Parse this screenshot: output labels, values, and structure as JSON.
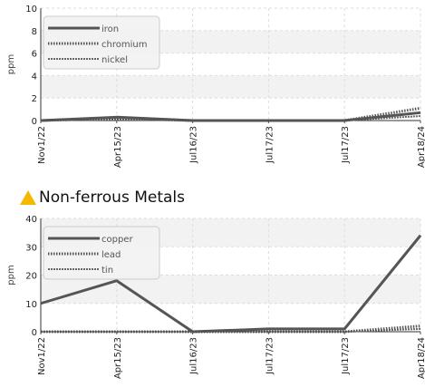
{
  "chart_data": [
    {
      "type": "line",
      "title": "",
      "ylabel": "ppm",
      "ylim": [
        0,
        10
      ],
      "yticks": [
        0,
        2,
        4,
        6,
        8,
        10
      ],
      "categories": [
        "Nov1/22",
        "Apr15/23",
        "Jul16/23",
        "Jul17/23",
        "Jul17/23",
        "Apr18/24"
      ],
      "grid": true,
      "legend_position": "top-left",
      "series": [
        {
          "name": "iron",
          "values": [
            0,
            0.3,
            0,
            0,
            0,
            0.7
          ],
          "color": "#555555",
          "style": "solid"
        },
        {
          "name": "chromium",
          "values": [
            0,
            0.2,
            0,
            0,
            0,
            1.1
          ],
          "color": "#555555",
          "style": "dotted"
        },
        {
          "name": "nickel",
          "values": [
            0,
            0.1,
            0,
            0,
            0,
            0.4
          ],
          "color": "#666666",
          "style": "dashed"
        }
      ]
    },
    {
      "type": "line",
      "title": "Non-ferrous Metals",
      "ylabel": "ppm",
      "ylim": [
        0,
        40
      ],
      "yticks": [
        0,
        10,
        20,
        30,
        40
      ],
      "categories": [
        "Nov1/22",
        "Apr15/23",
        "Jul16/23",
        "Jul17/23",
        "Jul17/23",
        "Apr18/24"
      ],
      "grid": true,
      "legend_position": "top-left",
      "series": [
        {
          "name": "copper",
          "values": [
            10,
            18,
            0,
            1,
            1,
            34
          ],
          "color": "#555555",
          "style": "solid"
        },
        {
          "name": "lead",
          "values": [
            0,
            0,
            0,
            0,
            0,
            2
          ],
          "color": "#555555",
          "style": "dotted"
        },
        {
          "name": "tin",
          "values": [
            0,
            0,
            0,
            0,
            0,
            1
          ],
          "color": "#666666",
          "style": "dashed"
        }
      ]
    }
  ],
  "warning_color": "#f5b800"
}
